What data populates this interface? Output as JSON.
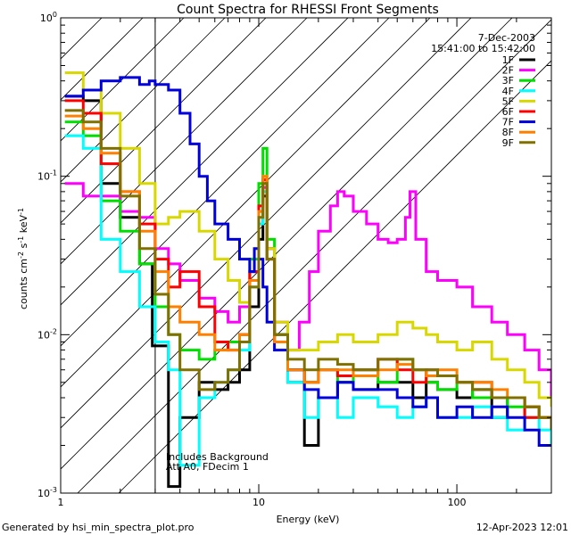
{
  "chart_data": {
    "type": "line",
    "title": "Count Spectra for RHESSI Front Segments",
    "xlabel": "Energy (keV)",
    "ylabel_parts": {
      "main": "counts cm",
      "exp1": "-2",
      "mid": " s",
      "exp2": "-1",
      "tail": " keV",
      "exp3": "-1"
    },
    "xscale": "log",
    "yscale": "log",
    "xlim": [
      1.0,
      300.0
    ],
    "ylim": [
      0.001,
      1.0
    ],
    "x_tick_labels": [
      {
        "value": 1,
        "label": "1"
      },
      {
        "value": 10,
        "label": "10"
      },
      {
        "value": 100,
        "label": "100"
      }
    ],
    "y_tick_labels": [
      {
        "value": 1,
        "base": "10",
        "exp": "0"
      },
      {
        "value": 0.1,
        "base": "10",
        "exp": "-1"
      },
      {
        "value": 0.01,
        "base": "10",
        "exp": "-2"
      },
      {
        "value": 0.001,
        "base": "10",
        "exp": "-3"
      }
    ],
    "date": "7-Dec-2003",
    "time_range": "15:41:00 to 15:42:00",
    "annotation_lines": [
      "Includes Background",
      "Att A0, FDecim 1"
    ],
    "shaded_region_max_energy": 3.0,
    "footer_left": "Generated by hsi_min_spectra_plot.pro",
    "footer_right": "12-Apr-2023 12:01",
    "series": [
      {
        "name": "1F",
        "color": "#000000",
        "x": [
          1.05,
          1.3,
          1.6,
          2.0,
          2.5,
          2.9,
          3.5,
          4.0,
          5.0,
          6.0,
          7.0,
          8.0,
          9.0,
          10.0,
          10.5,
          11.0,
          12.0,
          14.0,
          17.0,
          20.0,
          25.0,
          30.0,
          40.0,
          50.0,
          60.0,
          70.0,
          80.0,
          100.0,
          120.0,
          150.0,
          180.0,
          220.0,
          260.0,
          300.0
        ],
        "values": [
          0.32,
          0.3,
          0.09,
          0.055,
          0.028,
          0.0085,
          0.0011,
          0.003,
          0.005,
          0.0045,
          0.005,
          0.006,
          0.015,
          0.04,
          0.075,
          0.035,
          0.01,
          0.005,
          0.002,
          0.004,
          0.005,
          0.0045,
          0.005,
          0.005,
          0.004,
          0.005,
          0.0045,
          0.004,
          0.0045,
          0.003,
          0.004,
          0.0035,
          0.003,
          0.002
        ]
      },
      {
        "name": "2F",
        "color": "#ff00ff",
        "x": [
          1.05,
          1.3,
          1.6,
          2.0,
          2.5,
          3.0,
          3.5,
          4.0,
          5.0,
          6.0,
          7.0,
          8.0,
          9.0,
          10.0,
          10.5,
          11.0,
          12.0,
          14.0,
          16.0,
          18.0,
          20.0,
          23.0,
          25.0,
          27.0,
          30.0,
          35.0,
          40.0,
          45.0,
          50.0,
          55.0,
          58.0,
          62.0,
          70.0,
          80.0,
          100.0,
          120.0,
          150.0,
          180.0,
          220.0,
          260.0,
          300.0
        ],
        "values": [
          0.09,
          0.075,
          0.075,
          0.06,
          0.055,
          0.035,
          0.028,
          0.022,
          0.017,
          0.014,
          0.012,
          0.015,
          0.025,
          0.06,
          0.085,
          0.035,
          0.012,
          0.008,
          0.012,
          0.025,
          0.045,
          0.065,
          0.08,
          0.075,
          0.06,
          0.05,
          0.04,
          0.038,
          0.04,
          0.055,
          0.08,
          0.04,
          0.025,
          0.022,
          0.02,
          0.015,
          0.012,
          0.01,
          0.008,
          0.006,
          0.004
        ]
      },
      {
        "name": "3F",
        "color": "#00e000",
        "x": [
          1.05,
          1.3,
          1.6,
          2.0,
          2.5,
          3.0,
          3.5,
          4.0,
          5.0,
          6.0,
          7.0,
          8.0,
          9.0,
          10.0,
          10.5,
          11.0,
          12.0,
          14.0,
          17.0,
          20.0,
          25.0,
          30.0,
          40.0,
          50.0,
          60.0,
          70.0,
          80.0,
          100.0,
          120.0,
          150.0,
          180.0,
          220.0,
          260.0,
          300.0
        ],
        "values": [
          0.22,
          0.18,
          0.07,
          0.045,
          0.028,
          0.015,
          0.01,
          0.008,
          0.007,
          0.008,
          0.009,
          0.01,
          0.03,
          0.09,
          0.15,
          0.04,
          0.01,
          0.006,
          0.005,
          0.006,
          0.005,
          0.006,
          0.005,
          0.007,
          0.006,
          0.005,
          0.0045,
          0.005,
          0.004,
          0.004,
          0.0035,
          0.003,
          0.003,
          0.0025
        ]
      },
      {
        "name": "4F",
        "color": "#00ffff",
        "x": [
          1.05,
          1.3,
          1.6,
          2.0,
          2.5,
          3.0,
          3.5,
          4.0,
          5.0,
          6.0,
          7.0,
          8.0,
          9.0,
          10.0,
          10.5,
          11.0,
          12.0,
          14.0,
          17.0,
          20.0,
          25.0,
          30.0,
          40.0,
          50.0,
          60.0,
          70.0,
          80.0,
          100.0,
          120.0,
          150.0,
          180.0,
          220.0,
          260.0,
          300.0
        ],
        "values": [
          0.18,
          0.15,
          0.04,
          0.025,
          0.015,
          0.009,
          0.006,
          0.0015,
          0.004,
          0.005,
          0.006,
          0.008,
          0.02,
          0.05,
          0.08,
          0.03,
          0.009,
          0.005,
          0.003,
          0.004,
          0.003,
          0.004,
          0.0035,
          0.003,
          0.0035,
          0.004,
          0.003,
          0.003,
          0.0035,
          0.003,
          0.0025,
          0.003,
          0.0025,
          0.002
        ]
      },
      {
        "name": "5F",
        "color": "#d8d800",
        "x": [
          1.05,
          1.3,
          1.6,
          2.0,
          2.5,
          3.0,
          3.5,
          4.0,
          5.0,
          6.0,
          7.0,
          8.0,
          9.0,
          10.0,
          10.5,
          11.0,
          12.0,
          14.0,
          17.0,
          20.0,
          25.0,
          30.0,
          40.0,
          50.0,
          60.0,
          70.0,
          80.0,
          100.0,
          120.0,
          150.0,
          180.0,
          220.0,
          260.0,
          300.0
        ],
        "values": [
          0.45,
          0.35,
          0.25,
          0.15,
          0.09,
          0.05,
          0.055,
          0.06,
          0.045,
          0.03,
          0.022,
          0.016,
          0.025,
          0.06,
          0.1,
          0.035,
          0.012,
          0.008,
          0.008,
          0.009,
          0.01,
          0.009,
          0.01,
          0.012,
          0.011,
          0.01,
          0.009,
          0.008,
          0.009,
          0.007,
          0.006,
          0.005,
          0.004,
          0.0035
        ]
      },
      {
        "name": "6F",
        "color": "#ff0000",
        "x": [
          1.05,
          1.3,
          1.6,
          2.0,
          2.5,
          3.0,
          3.5,
          4.0,
          5.0,
          6.0,
          7.0,
          8.0,
          9.0,
          10.0,
          10.5,
          11.0,
          12.0,
          14.0,
          17.0,
          20.0,
          25.0,
          30.0,
          40.0,
          50.0,
          60.0,
          70.0,
          80.0,
          100.0,
          120.0,
          150.0,
          180.0,
          220.0,
          260.0,
          300.0
        ],
        "values": [
          0.3,
          0.25,
          0.12,
          0.08,
          0.05,
          0.03,
          0.02,
          0.025,
          0.015,
          0.009,
          0.008,
          0.01,
          0.025,
          0.065,
          0.095,
          0.03,
          0.009,
          0.006,
          0.005,
          0.006,
          0.0055,
          0.006,
          0.007,
          0.006,
          0.005,
          0.006,
          0.0055,
          0.005,
          0.005,
          0.004,
          0.004,
          0.003,
          0.003,
          0.0025
        ]
      },
      {
        "name": "7F",
        "color": "#0000dd",
        "x": [
          1.05,
          1.3,
          1.6,
          2.0,
          2.3,
          2.5,
          2.8,
          3.0,
          3.5,
          4.0,
          4.5,
          5.0,
          5.5,
          6.0,
          7.0,
          8.0,
          9.0,
          9.5,
          10.0,
          10.5,
          11.0,
          12.0,
          14.0,
          17.0,
          20.0,
          25.0,
          30.0,
          40.0,
          50.0,
          60.0,
          70.0,
          80.0,
          100.0,
          120.0,
          150.0,
          180.0,
          220.0,
          260.0,
          300.0
        ],
        "values": [
          0.32,
          0.35,
          0.4,
          0.42,
          0.42,
          0.38,
          0.4,
          0.38,
          0.35,
          0.25,
          0.16,
          0.1,
          0.07,
          0.05,
          0.04,
          0.03,
          0.025,
          0.035,
          0.03,
          0.02,
          0.012,
          0.008,
          0.006,
          0.0045,
          0.004,
          0.005,
          0.0045,
          0.0045,
          0.004,
          0.0035,
          0.004,
          0.003,
          0.0035,
          0.003,
          0.0035,
          0.003,
          0.0025,
          0.002,
          0.002
        ]
      },
      {
        "name": "8F",
        "color": "#ff8000",
        "x": [
          1.05,
          1.3,
          1.6,
          2.0,
          2.5,
          3.0,
          3.5,
          4.0,
          5.0,
          6.0,
          7.0,
          8.0,
          9.0,
          10.0,
          10.5,
          11.0,
          12.0,
          14.0,
          17.0,
          20.0,
          25.0,
          30.0,
          40.0,
          50.0,
          60.0,
          70.0,
          80.0,
          100.0,
          120.0,
          150.0,
          180.0,
          220.0,
          260.0,
          300.0
        ],
        "values": [
          0.24,
          0.2,
          0.14,
          0.08,
          0.045,
          0.025,
          0.015,
          0.012,
          0.01,
          0.008,
          0.008,
          0.01,
          0.022,
          0.06,
          0.1,
          0.03,
          0.009,
          0.006,
          0.005,
          0.006,
          0.006,
          0.0055,
          0.006,
          0.0065,
          0.006,
          0.0055,
          0.006,
          0.005,
          0.005,
          0.0045,
          0.004,
          0.0035,
          0.003,
          0.0025
        ]
      },
      {
        "name": "9F",
        "color": "#807000",
        "x": [
          1.05,
          1.3,
          1.6,
          2.0,
          2.5,
          3.0,
          3.5,
          4.0,
          5.0,
          6.0,
          7.0,
          8.0,
          9.0,
          10.0,
          10.5,
          11.0,
          12.0,
          14.0,
          17.0,
          20.0,
          25.0,
          30.0,
          40.0,
          50.0,
          60.0,
          70.0,
          80.0,
          100.0,
          120.0,
          150.0,
          180.0,
          220.0,
          260.0,
          300.0
        ],
        "values": [
          0.26,
          0.22,
          0.15,
          0.075,
          0.035,
          0.018,
          0.01,
          0.006,
          0.0045,
          0.005,
          0.006,
          0.009,
          0.02,
          0.055,
          0.09,
          0.03,
          0.01,
          0.007,
          0.006,
          0.007,
          0.0065,
          0.006,
          0.007,
          0.007,
          0.006,
          0.006,
          0.0055,
          0.005,
          0.0045,
          0.004,
          0.004,
          0.0035,
          0.003,
          0.0025
        ]
      }
    ]
  }
}
